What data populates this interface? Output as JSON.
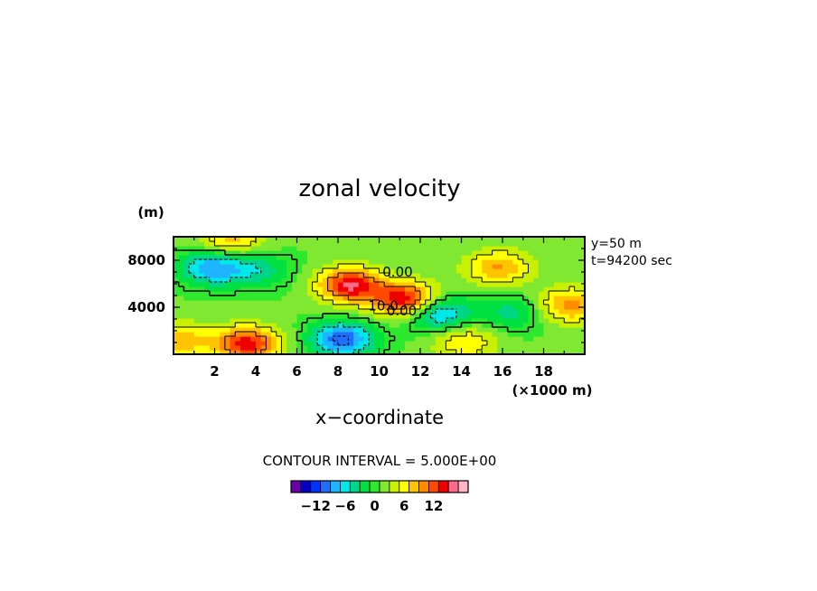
{
  "chart_data": {
    "type": "heatmap",
    "title": "zonal velocity",
    "xlabel": "x−coordinate",
    "x_unit": "(×1000 m)",
    "y_unit": "(m)",
    "xlim": [
      0,
      20
    ],
    "ylim": [
      0,
      10000
    ],
    "x_ticks": [
      2,
      4,
      6,
      8,
      10,
      12,
      14,
      16,
      18
    ],
    "x_tick_labels": [
      "2",
      "4",
      "6",
      "8",
      "10",
      "12",
      "14",
      "16",
      "18"
    ],
    "y_ticks": [
      4000,
      8000
    ],
    "y_tick_labels": [
      "4000",
      "8000"
    ],
    "annotations": [
      "y=50 m",
      "t=94200 sec"
    ],
    "contour_interval_label": "CONTOUR INTERVAL = 5.000E+00",
    "contour_labels": [
      {
        "text": "0.00",
        "x": 10.9,
        "y": 7000
      },
      {
        "text": "10.0",
        "x": 10.2,
        "y": 4100
      },
      {
        "text": "0.00",
        "x": 11.1,
        "y": 3700
      }
    ],
    "colorbar": {
      "min": -15,
      "max": 15,
      "step": 2,
      "tick_values": [
        -12,
        -6,
        0,
        6,
        12
      ],
      "tick_labels": [
        "−12",
        "−6",
        "0",
        "6",
        "12"
      ],
      "colors": [
        "#6a00a8",
        "#0000c8",
        "#0033ff",
        "#1f6fff",
        "#1fb4ff",
        "#00e8e8",
        "#00d68a",
        "#00e040",
        "#2ee82e",
        "#80e830",
        "#c8f000",
        "#ffff00",
        "#ffc400",
        "#ff8c00",
        "#ff4a00",
        "#ee0000",
        "#ff6a8a",
        "#ffb4c4"
      ]
    },
    "features": [
      {
        "kind": "max",
        "x": 8.6,
        "y": 5900,
        "value": 14
      },
      {
        "kind": "max",
        "x": 11.4,
        "y": 4600,
        "value": 15
      },
      {
        "kind": "min",
        "x": 8.2,
        "y": 1300,
        "value": -12
      },
      {
        "kind": "min",
        "x": 12.8,
        "y": 3600,
        "value": -11
      },
      {
        "kind": "max",
        "x": 3.6,
        "y": 900,
        "value": 13
      },
      {
        "kind": "min",
        "x": 1.9,
        "y": 7400,
        "value": -10
      },
      {
        "kind": "max",
        "x": 15.8,
        "y": 7400,
        "value": 8
      },
      {
        "kind": "min",
        "x": 4.2,
        "y": 7200,
        "value": -5
      },
      {
        "kind": "max",
        "x": 19.3,
        "y": 4200,
        "value": 9
      },
      {
        "kind": "max",
        "x": 14.2,
        "y": 1100,
        "value": 6
      },
      {
        "kind": "min",
        "x": 16.5,
        "y": 3600,
        "value": -5
      },
      {
        "kind": "max",
        "x": 2.8,
        "y": 9800,
        "value": 7
      },
      {
        "kind": "max",
        "x": 0.3,
        "y": 1200,
        "value": 7
      }
    ]
  }
}
